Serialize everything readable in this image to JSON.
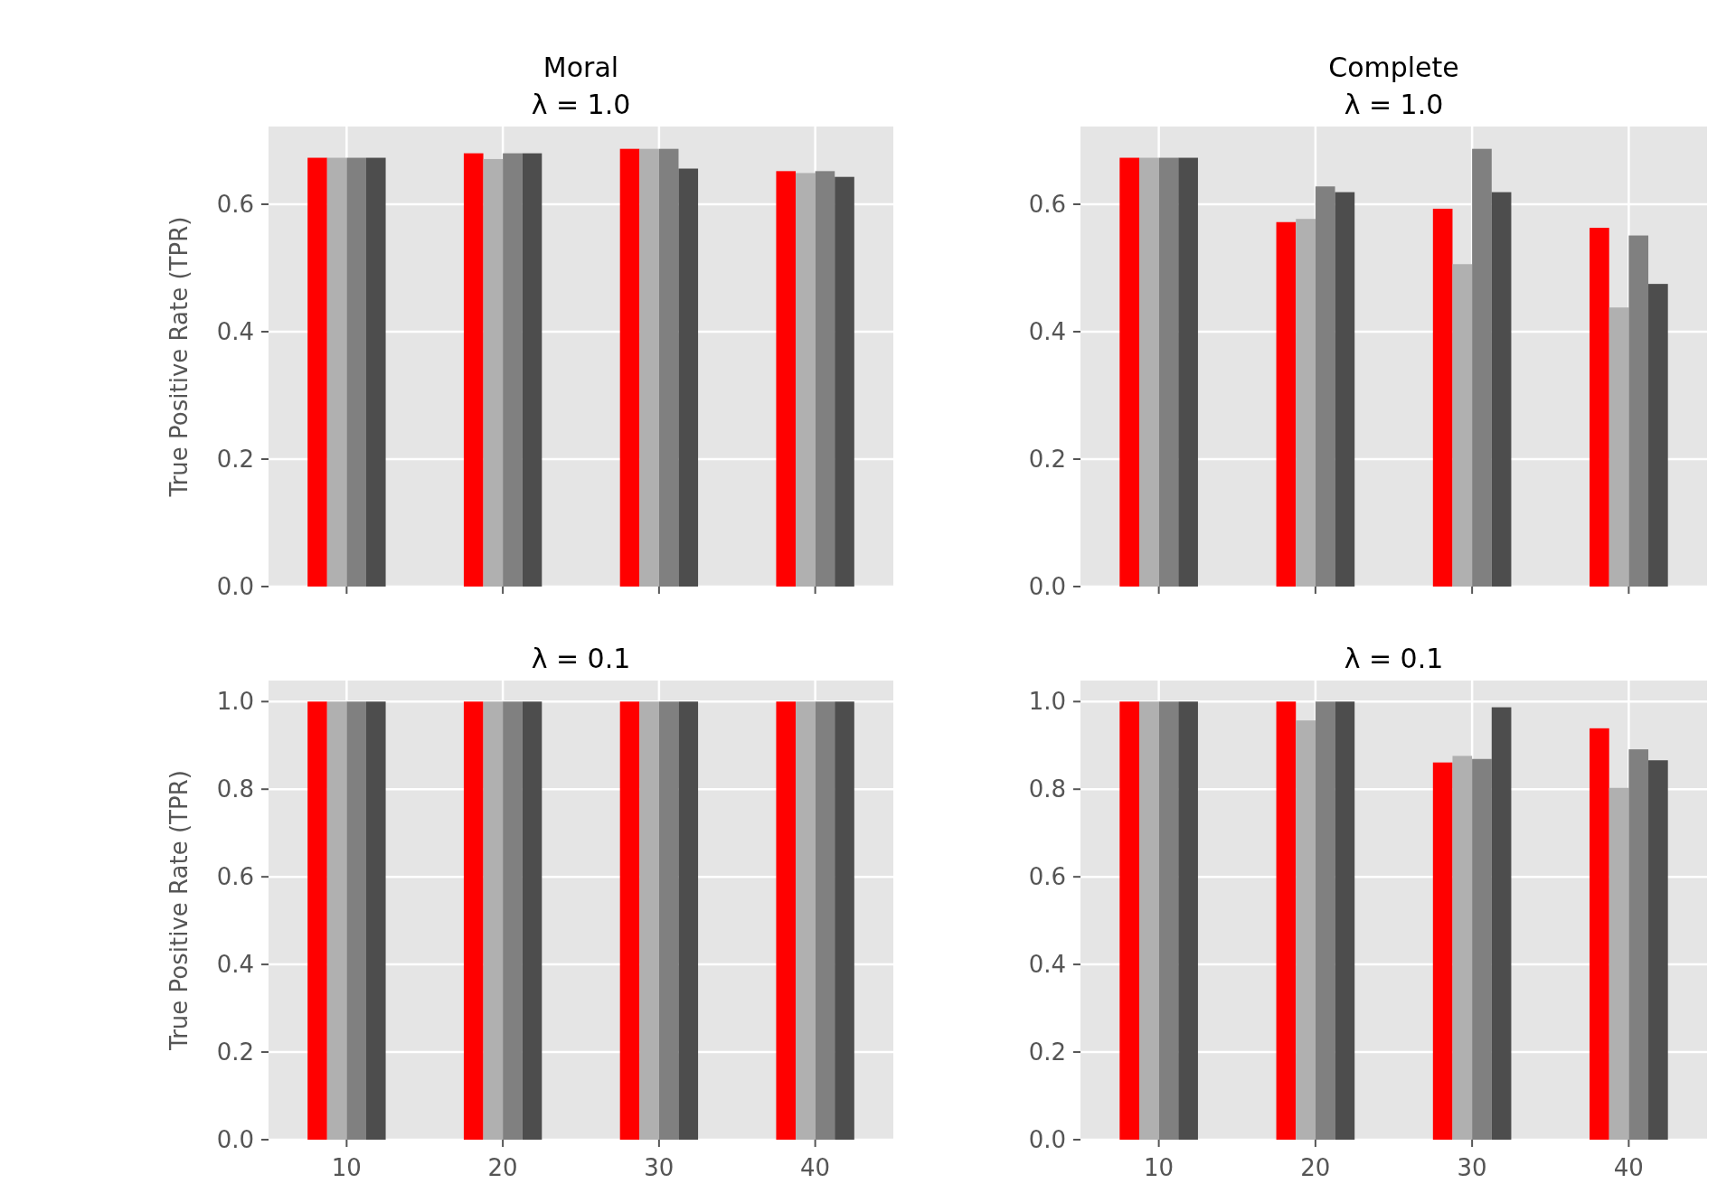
{
  "chart_data": [
    {
      "type": "bar",
      "title": "Moral\nλ = 1.0",
      "ylabel": "True Positive Rate (TPR)",
      "categories": [
        "10",
        "20",
        "30",
        "40"
      ],
      "ylim": [
        0,
        0.722
      ],
      "yticks": [
        {
          "value": 0,
          "label": "0.0"
        },
        {
          "value": 0.2,
          "label": "0.2"
        },
        {
          "value": 0.4,
          "label": "0.4"
        },
        {
          "value": 0.6,
          "label": "0.6"
        }
      ],
      "grid": true,
      "tick_labels": "y",
      "series": [
        {
          "color": "#ff0000",
          "values": [
            0.673,
            0.68,
            0.687,
            0.652
          ]
        },
        {
          "color": "#b0b0b0",
          "values": [
            0.673,
            0.671,
            0.687,
            0.649
          ]
        },
        {
          "color": "#808080",
          "values": [
            0.673,
            0.68,
            0.687,
            0.652
          ]
        },
        {
          "color": "#4d4d4d",
          "values": [
            0.673,
            0.68,
            0.656,
            0.643
          ]
        }
      ]
    },
    {
      "type": "bar",
      "title": "Complete\nλ = 1.0",
      "categories": [
        "10",
        "20",
        "30",
        "40"
      ],
      "ylim": [
        0,
        0.722
      ],
      "yticks": [
        {
          "value": 0,
          "label": "0.0"
        },
        {
          "value": 0.2,
          "label": "0.2"
        },
        {
          "value": 0.4,
          "label": "0.4"
        },
        {
          "value": 0.6,
          "label": "0.6"
        }
      ],
      "grid": true,
      "tick_labels": "y",
      "series": [
        {
          "color": "#ff0000",
          "values": [
            0.673,
            0.572,
            0.593,
            0.563
          ]
        },
        {
          "color": "#b0b0b0",
          "values": [
            0.673,
            0.577,
            0.506,
            0.438
          ]
        },
        {
          "color": "#808080",
          "values": [
            0.673,
            0.628,
            0.687,
            0.551
          ]
        },
        {
          "color": "#4d4d4d",
          "values": [
            0.673,
            0.619,
            0.619,
            0.475
          ]
        }
      ]
    },
    {
      "type": "bar",
      "title": "λ = 0.1",
      "ylabel": "True Positive Rate (TPR)",
      "categories": [
        "10",
        "20",
        "30",
        "40"
      ],
      "ylim": [
        0,
        1.048
      ],
      "yticks": [
        {
          "value": 0,
          "label": "0.0"
        },
        {
          "value": 0.2,
          "label": "0.2"
        },
        {
          "value": 0.4,
          "label": "0.4"
        },
        {
          "value": 0.6,
          "label": "0.6"
        },
        {
          "value": 0.8,
          "label": "0.8"
        },
        {
          "value": 1,
          "label": "1.0"
        }
      ],
      "grid": true,
      "series": [
        {
          "color": "#ff0000",
          "values": [
            1,
            1,
            1,
            1
          ]
        },
        {
          "color": "#b0b0b0",
          "values": [
            1,
            1,
            1,
            1
          ]
        },
        {
          "color": "#808080",
          "values": [
            1,
            1,
            1,
            1
          ]
        },
        {
          "color": "#4d4d4d",
          "values": [
            1,
            1,
            1,
            1
          ]
        }
      ]
    },
    {
      "type": "bar",
      "title": "λ = 0.1",
      "categories": [
        "10",
        "20",
        "30",
        "40"
      ],
      "ylim": [
        0,
        1.048
      ],
      "yticks": [
        {
          "value": 0,
          "label": "0.0"
        },
        {
          "value": 0.2,
          "label": "0.2"
        },
        {
          "value": 0.4,
          "label": "0.4"
        },
        {
          "value": 0.6,
          "label": "0.6"
        },
        {
          "value": 0.8,
          "label": "0.8"
        },
        {
          "value": 1,
          "label": "1.0"
        }
      ],
      "grid": true,
      "series": [
        {
          "color": "#ff0000",
          "values": [
            1,
            1,
            0.861,
            0.939
          ]
        },
        {
          "color": "#b0b0b0",
          "values": [
            1,
            0.957,
            0.876,
            0.803
          ]
        },
        {
          "color": "#808080",
          "values": [
            1,
            1,
            0.869,
            0.891
          ]
        },
        {
          "color": "#4d4d4d",
          "values": [
            1,
            1,
            0.987,
            0.866
          ]
        }
      ]
    }
  ]
}
